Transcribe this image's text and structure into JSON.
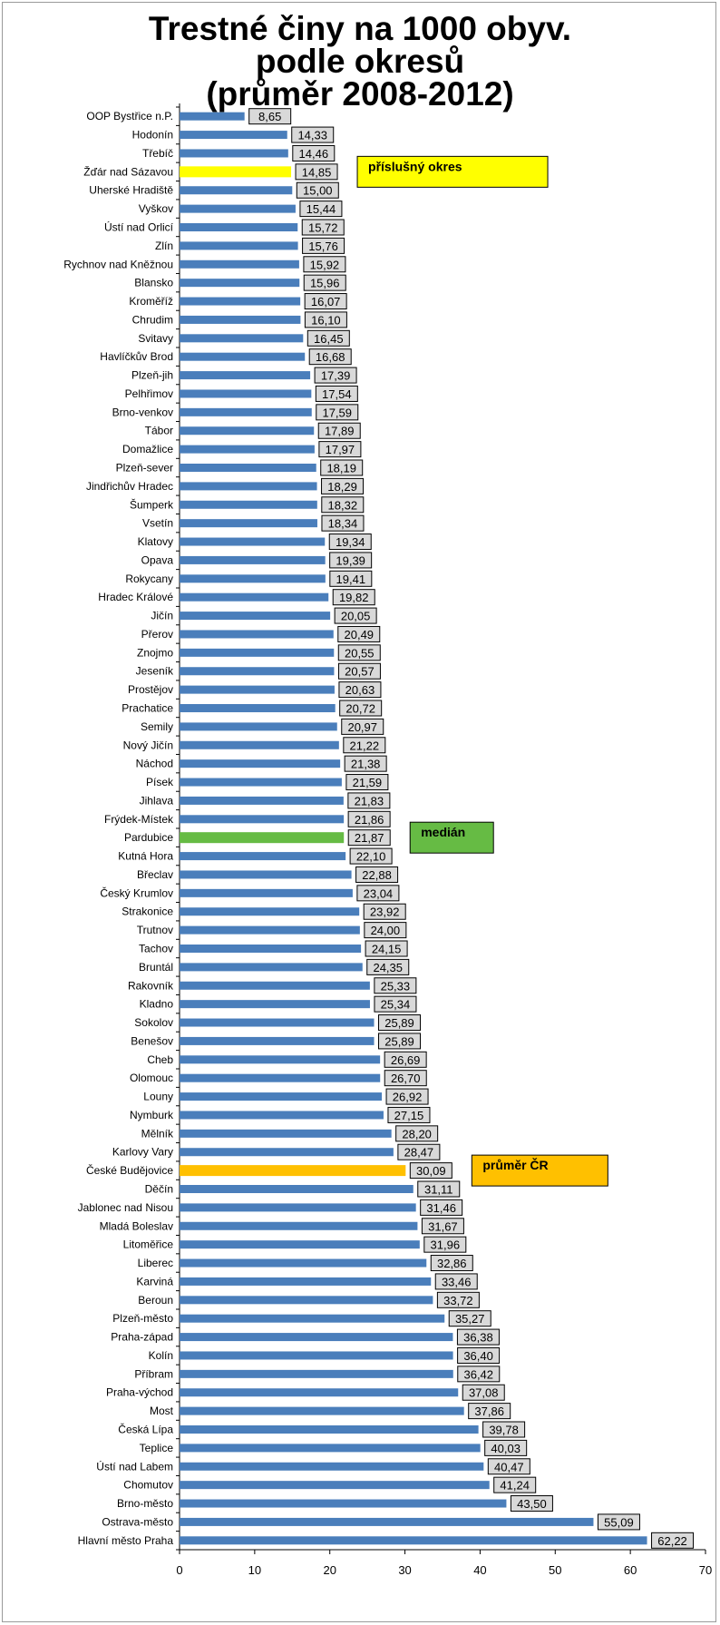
{
  "colors": {
    "bar_default": "#4a7ebb",
    "bar_district": "#ffff00",
    "bar_median": "#66bb44",
    "bar_average": "#ffc000",
    "label_box": "#d9d9d9",
    "label_border": "#000000"
  },
  "chart_data": {
    "type": "bar",
    "orientation": "horizontal",
    "title_lines": [
      "Trestné činy na 1000 obyv.",
      "podle okresů",
      "(průměr 2008-2012)"
    ],
    "xlabel": "",
    "ylabel": "",
    "xlim": [
      0,
      70
    ],
    "xticks": [
      "0",
      "10",
      "20",
      "30",
      "40",
      "50",
      "60",
      "70"
    ],
    "grid": false,
    "categories": [
      "OOP Bystřice n.P.",
      "Hodonín",
      "Třebíč",
      "Žďár nad Sázavou",
      "Uherské Hradiště",
      "Vyškov",
      "Ústí nad Orlicí",
      "Zlín",
      "Rychnov nad Kněžnou",
      "Blansko",
      "Kroměříž",
      "Chrudim",
      "Svitavy",
      "Havlíčkův Brod",
      "Plzeň-jih",
      "Pelhřimov",
      "Brno-venkov",
      "Tábor",
      "Domažlice",
      "Plzeň-sever",
      "Jindřichův Hradec",
      "Šumperk",
      "Vsetín",
      "Klatovy",
      "Opava",
      "Rokycany",
      "Hradec Králové",
      "Jičín",
      "Přerov",
      "Znojmo",
      "Jeseník",
      "Prostějov",
      "Prachatice",
      "Semily",
      "Nový Jičín",
      "Náchod",
      "Písek",
      "Jihlava",
      "Frýdek-Místek",
      "Pardubice",
      "Kutná Hora",
      "Břeclav",
      "Český Krumlov",
      "Strakonice",
      "Trutnov",
      "Tachov",
      "Bruntál",
      "Rakovník",
      "Kladno",
      "Sokolov",
      "Benešov",
      "Cheb",
      "Olomouc",
      "Louny",
      "Nymburk",
      "Mělník",
      "Karlovy Vary",
      "České Budějovice",
      "Děčín",
      "Jablonec nad Nisou",
      "Mladá Boleslav",
      "Litoměřice",
      "Liberec",
      "Karviná",
      "Beroun",
      "Plzeň-město",
      "Praha-západ",
      "Kolín",
      "Příbram",
      "Praha-východ",
      "Most",
      "Česká Lípa",
      "Teplice",
      "Ústí nad Labem",
      "Chomutov",
      "Brno-město",
      "Ostrava-město",
      "Hlavní město Praha"
    ],
    "values": [
      8.65,
      14.33,
      14.46,
      14.85,
      15.0,
      15.44,
      15.72,
      15.76,
      15.92,
      15.96,
      16.07,
      16.1,
      16.45,
      16.68,
      17.39,
      17.54,
      17.59,
      17.89,
      17.97,
      18.19,
      18.29,
      18.32,
      18.34,
      19.34,
      19.39,
      19.41,
      19.82,
      20.05,
      20.49,
      20.55,
      20.57,
      20.63,
      20.72,
      20.97,
      21.22,
      21.38,
      21.59,
      21.83,
      21.86,
      21.87,
      22.1,
      22.88,
      23.04,
      23.92,
      24.0,
      24.15,
      24.35,
      25.33,
      25.34,
      25.89,
      25.89,
      26.69,
      26.7,
      26.92,
      27.15,
      28.2,
      28.47,
      30.09,
      31.11,
      31.46,
      31.67,
      31.96,
      32.86,
      33.46,
      33.72,
      35.27,
      36.38,
      36.4,
      36.42,
      37.08,
      37.86,
      39.78,
      40.03,
      40.47,
      41.24,
      43.5,
      55.09,
      62.22
    ],
    "value_labels": [
      "8,65",
      "14,33",
      "14,46",
      "14,85",
      "15,00",
      "15,44",
      "15,72",
      "15,76",
      "15,92",
      "15,96",
      "16,07",
      "16,10",
      "16,45",
      "16,68",
      "17,39",
      "17,54",
      "17,59",
      "17,89",
      "17,97",
      "18,19",
      "18,29",
      "18,32",
      "18,34",
      "19,34",
      "19,39",
      "19,41",
      "19,82",
      "20,05",
      "20,49",
      "20,55",
      "20,57",
      "20,63",
      "20,72",
      "20,97",
      "21,22",
      "21,38",
      "21,59",
      "21,83",
      "21,86",
      "21,87",
      "22,10",
      "22,88",
      "23,04",
      "23,92",
      "24,00",
      "24,15",
      "24,35",
      "25,33",
      "25,34",
      "25,89",
      "25,89",
      "26,69",
      "26,70",
      "26,92",
      "27,15",
      "28,20",
      "28,47",
      "30,09",
      "31,11",
      "31,46",
      "31,67",
      "31,96",
      "32,86",
      "33,46",
      "33,72",
      "35,27",
      "36,38",
      "36,40",
      "36,42",
      "37,08",
      "37,86",
      "39,78",
      "40,03",
      "40,47",
      "41,24",
      "43,50",
      "55,09",
      "62,22"
    ],
    "highlights": [
      {
        "category": "Žďár nad Sázavou",
        "color": "#ffff00",
        "annotation": "příslušný okres"
      },
      {
        "category": "Pardubice",
        "color": "#66bb44",
        "annotation": "medián"
      },
      {
        "category": "České Budějovice",
        "color": "#ffc000",
        "annotation": "průměr ČR"
      }
    ]
  }
}
